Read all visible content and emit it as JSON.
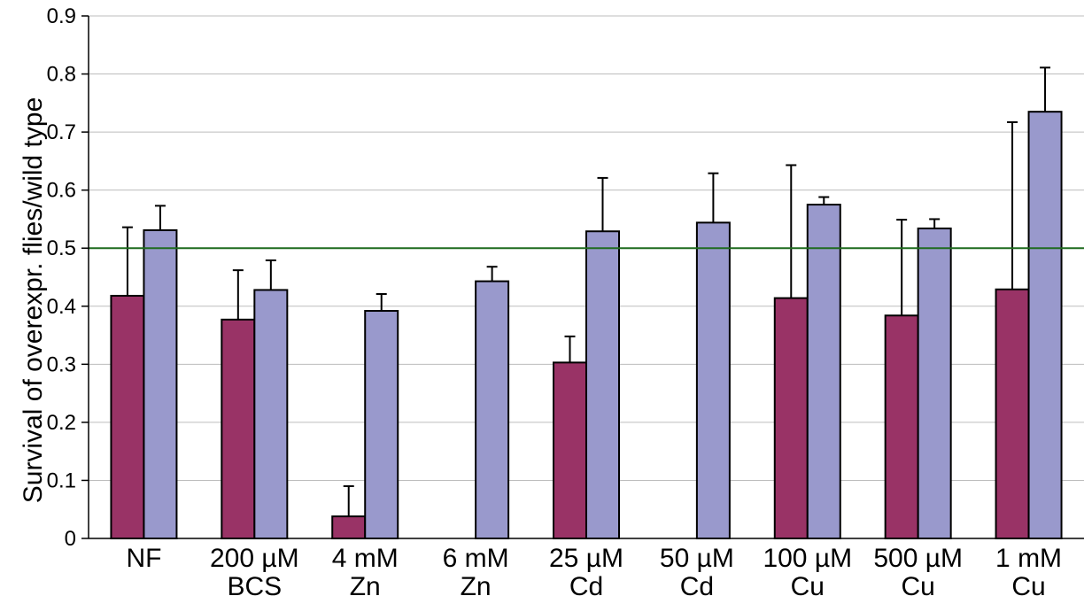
{
  "chart_data": {
    "type": "bar",
    "title": "",
    "xlabel": "",
    "ylabel": "Survival of overexpr. flies/wild type",
    "ylim": [
      0,
      0.9
    ],
    "yticks": [
      "0",
      "0.1",
      "0.2",
      "0.3",
      "0.4",
      "0.5",
      "0.6",
      "0.7",
      "0.8",
      "0.9"
    ],
    "grid": true,
    "reference_line": {
      "y": 0.5,
      "color": "#1f6b1f"
    },
    "categories": [
      [
        "NF",
        ""
      ],
      [
        "200 µM",
        "BCS"
      ],
      [
        "4 mM",
        "Zn"
      ],
      [
        "6 mM",
        "Zn"
      ],
      [
        "25 µM",
        "Cd"
      ],
      [
        "50 µM",
        "Cd"
      ],
      [
        "100 µM",
        "Cu"
      ],
      [
        "500 µM",
        "Cu"
      ],
      [
        "1 mM",
        "Cu"
      ]
    ],
    "series": [
      {
        "color": "#993366",
        "values": [
          0.418,
          0.377,
          0.038,
          0.0,
          0.303,
          0.0,
          0.414,
          0.384,
          0.429
        ],
        "error": [
          0.118,
          0.085,
          0.052,
          0.0,
          0.045,
          0.0,
          0.229,
          0.165,
          0.288
        ]
      },
      {
        "color": "#9999cc",
        "values": [
          0.531,
          0.428,
          0.392,
          0.443,
          0.529,
          0.544,
          0.575,
          0.534,
          0.735
        ],
        "error": [
          0.042,
          0.051,
          0.029,
          0.025,
          0.092,
          0.085,
          0.013,
          0.016,
          0.076
        ]
      }
    ]
  }
}
